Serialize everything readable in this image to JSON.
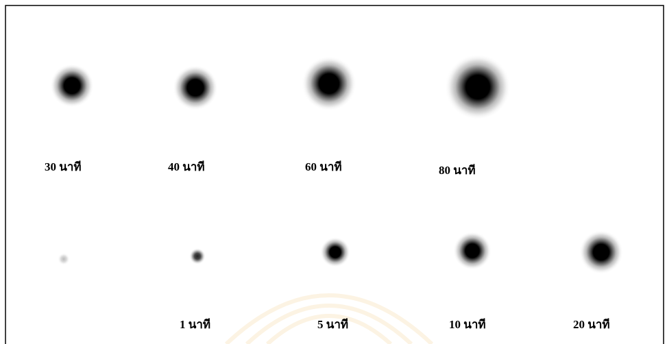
{
  "figure": {
    "top_row": {
      "labels": [
        "30 นาที",
        "40 นาที",
        "60 นาที",
        "80 นาที"
      ]
    },
    "bottom_row": {
      "labels": [
        "1 นาที",
        "5 นาที",
        "10 นาที",
        "20 นาที"
      ]
    }
  }
}
